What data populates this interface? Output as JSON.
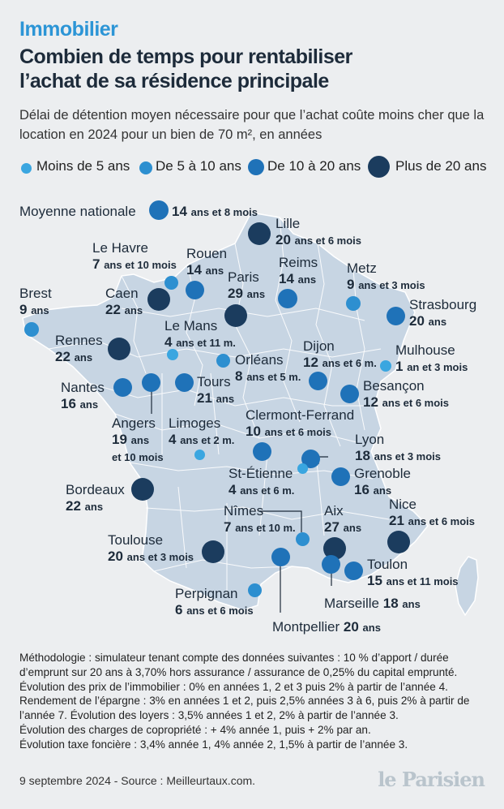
{
  "header": {
    "kicker": "Immobilier",
    "title_line1": "Combien de temps pour rentabiliser",
    "title_line2": "l’achat de sa résidence principale",
    "subtitle": "Délai de détention moyen nécessaire pour que l’achat coûte moins cher que la location en 2024 pour un bien de 70 m², en années"
  },
  "legend": [
    {
      "label": "Moins de 5 ans",
      "color": "#3aa6e0"
    },
    {
      "label": "De 5 à 10 ans",
      "color": "#2d8fd0"
    },
    {
      "label": "De 10 à 20 ans",
      "color": "#1f72b8"
    },
    {
      "label": "Plus de 20 ans",
      "color": "#1b3c5e"
    }
  ],
  "map": {
    "land_color": "#c7d5e3",
    "national": {
      "label": "Moyenne nationale",
      "value": "14",
      "unit": "ans et 8 mois"
    },
    "cities": [
      {
        "city": "Lille",
        "value": "20",
        "unit": "ans et 6 mois"
      },
      {
        "city": "Le Havre",
        "value": "7",
        "unit": "ans et 10 mois"
      },
      {
        "city": "Rouen",
        "value": "14",
        "unit": "ans"
      },
      {
        "city": "Paris",
        "value": "29",
        "unit": "ans"
      },
      {
        "city": "Reims",
        "value": "14",
        "unit": "ans"
      },
      {
        "city": "Metz",
        "value": "9",
        "unit": "ans et 3 mois"
      },
      {
        "city": "Brest",
        "value": "9",
        "unit": "ans"
      },
      {
        "city": "Caen",
        "value": "22",
        "unit": "ans"
      },
      {
        "city": "Strasbourg",
        "value": "20",
        "unit": "ans"
      },
      {
        "city": "Le Mans",
        "value": "4",
        "unit": "ans et 11 m."
      },
      {
        "city": "Rennes",
        "value": "22",
        "unit": "ans"
      },
      {
        "city": "Orléans",
        "value": "8",
        "unit": "ans et 5 m."
      },
      {
        "city": "Dijon",
        "value": "12",
        "unit": "ans et 6 m."
      },
      {
        "city": "Mulhouse",
        "value": "1",
        "unit": "an et 3 mois"
      },
      {
        "city": "Nantes",
        "value": "16",
        "unit": "ans"
      },
      {
        "city": "Tours",
        "value": "21",
        "unit": "ans"
      },
      {
        "city": "Besançon",
        "value": "12",
        "unit": "ans et 6 mois"
      },
      {
        "city": "Angers",
        "value": "19",
        "unit": "ans",
        "extra": "et 10 mois"
      },
      {
        "city": "Limoges",
        "value": "4",
        "unit": "ans et 2 m."
      },
      {
        "city": "Clermont-Ferrand",
        "value": "10",
        "unit": "ans et 6 mois"
      },
      {
        "city": "Lyon",
        "value": "18",
        "unit": "ans et 3 mois"
      },
      {
        "city": "St-Étienne",
        "value": "4",
        "unit": "ans et 6 m."
      },
      {
        "city": "Grenoble",
        "value": "16",
        "unit": "ans"
      },
      {
        "city": "Bordeaux",
        "value": "22",
        "unit": "ans"
      },
      {
        "city": "Nîmes",
        "value": "7",
        "unit": "ans et 10 m."
      },
      {
        "city": "Aix",
        "value": "27",
        "unit": "ans"
      },
      {
        "city": "Nice",
        "value": "21",
        "unit": "ans et 6 mois"
      },
      {
        "city": "Toulouse",
        "value": "20",
        "unit": "ans et 3 mois"
      },
      {
        "city": "Toulon",
        "value": "15",
        "unit": "ans et 11 mois"
      },
      {
        "city": "Marseille",
        "value": "18",
        "unit": "ans"
      },
      {
        "city": "Perpignan",
        "value": "6",
        "unit": "ans et 6 mois"
      },
      {
        "city": "Montpellier",
        "value": "20",
        "unit": "ans"
      }
    ]
  },
  "methodology": [
    "Méthodologie : simulateur tenant compte des données suivantes : 10 % d’apport / durée d’emprunt sur 20 ans à 3,70% hors assurance / assurance de 0,25% du capital emprunté.",
    "Évolution des prix de l’immobilier : 0% en années 1, 2 et 3 puis 2% à partir de l’année 4.",
    "Rendement de l’épargne : 3% en années 1 et 2, puis 2,5% années 3 à 6, puis 2% à partir de l’année 7. Évolution des loyers : 3,5% années 1 et 2, 2% à partir de l’année 3.",
    "Évolution des charges de copropriété : + 4% année 1, puis + 2% par an.",
    "Évolution taxe foncière : 3,4% année 1, 4% année 2, 1,5% à partir de l’année 3."
  ],
  "footer": {
    "source": "9 septembre 2024 - Source : Meilleurtaux.com.",
    "logo": "le Parisien"
  }
}
